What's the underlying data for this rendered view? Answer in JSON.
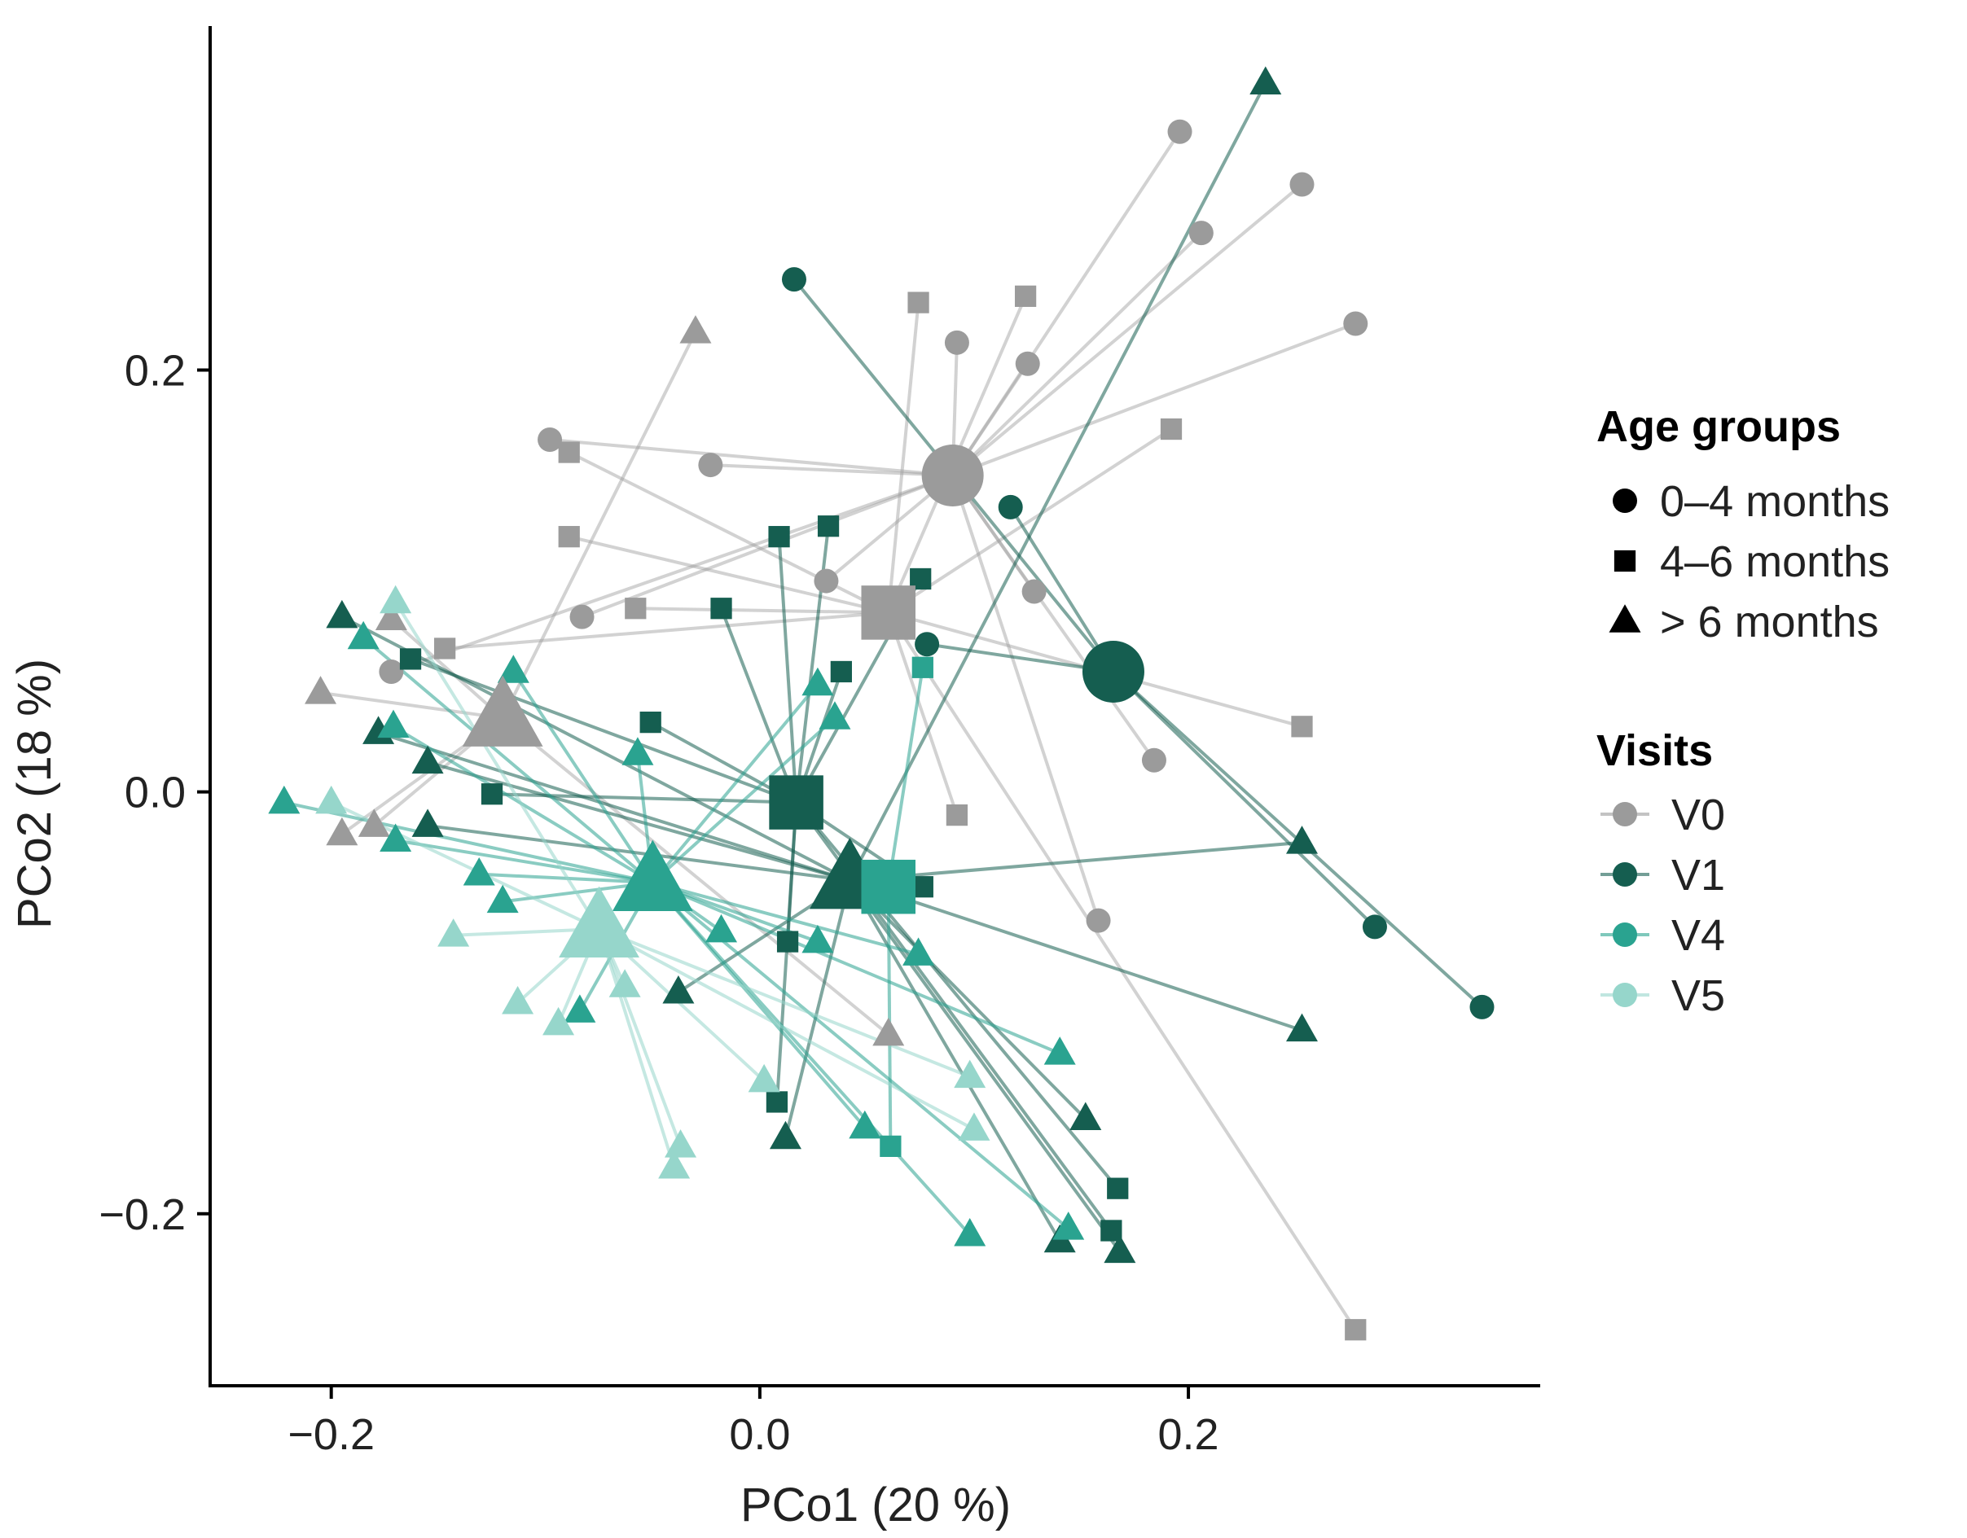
{
  "chart_data": {
    "type": "scatter",
    "subtype": "PCoA biplot with spider lines to centroids",
    "xlabel": "PCo1 (20 %)",
    "ylabel": "PCo2 (18 %)",
    "xlim": [
      -0.255,
      0.36
    ],
    "ylim": [
      -0.28,
      0.36
    ],
    "xticks": [
      -0.2,
      0.0,
      0.2
    ],
    "yticks": [
      -0.2,
      0.0,
      0.2
    ],
    "xtick_labels": [
      "−0.2",
      "0.0",
      "0.2"
    ],
    "ytick_labels": [
      "−0.2",
      "0.0",
      "0.2"
    ],
    "grid": false,
    "legend_position": "right",
    "legend": {
      "shape_title": "Age groups",
      "shapes": [
        {
          "shape": "circle",
          "label": "0–4 months"
        },
        {
          "shape": "square",
          "label": "4–6 months"
        },
        {
          "shape": "triangle",
          "label": "> 6 months"
        }
      ],
      "color_title": "Visits",
      "colors": [
        {
          "visit": "V0",
          "label": "V0"
        },
        {
          "visit": "V1",
          "label": "V1"
        },
        {
          "visit": "V4",
          "label": "V4"
        },
        {
          "visit": "V5",
          "label": "V5"
        }
      ]
    },
    "colors": {
      "V0": "#9b9b9b",
      "V1": "#155e50",
      "V4": "#2aa390",
      "V5": "#96d6cb"
    },
    "centroids": [
      {
        "visit": "V0",
        "shape": "circle",
        "x": 0.09,
        "y": 0.15
      },
      {
        "visit": "V0",
        "shape": "square",
        "x": 0.06,
        "y": 0.085
      },
      {
        "visit": "V0",
        "shape": "triangle",
        "x": -0.12,
        "y": 0.035
      },
      {
        "visit": "V1",
        "shape": "circle",
        "x": 0.165,
        "y": 0.057
      },
      {
        "visit": "V1",
        "shape": "square",
        "x": 0.017,
        "y": -0.005
      },
      {
        "visit": "V1",
        "shape": "triangle",
        "x": 0.042,
        "y": -0.042
      },
      {
        "visit": "V4",
        "shape": "square",
        "x": 0.06,
        "y": -0.045
      },
      {
        "visit": "V4",
        "shape": "triangle",
        "x": -0.05,
        "y": -0.043
      },
      {
        "visit": "V5",
        "shape": "triangle",
        "x": -0.075,
        "y": -0.065
      }
    ],
    "points": [
      {
        "visit": "V0",
        "shape": "circle",
        "x": 0.196,
        "y": 0.313
      },
      {
        "visit": "V0",
        "shape": "circle",
        "x": 0.253,
        "y": 0.288
      },
      {
        "visit": "V0",
        "shape": "circle",
        "x": 0.206,
        "y": 0.265
      },
      {
        "visit": "V0",
        "shape": "circle",
        "x": 0.278,
        "y": 0.222
      },
      {
        "visit": "V0",
        "shape": "circle",
        "x": 0.092,
        "y": 0.213
      },
      {
        "visit": "V0",
        "shape": "circle",
        "x": 0.125,
        "y": 0.203
      },
      {
        "visit": "V0",
        "shape": "circle",
        "x": -0.098,
        "y": 0.167
      },
      {
        "visit": "V0",
        "shape": "circle",
        "x": -0.023,
        "y": 0.155
      },
      {
        "visit": "V0",
        "shape": "circle",
        "x": 0.031,
        "y": 0.1
      },
      {
        "visit": "V0",
        "shape": "circle",
        "x": 0.128,
        "y": 0.095
      },
      {
        "visit": "V0",
        "shape": "circle",
        "x": -0.083,
        "y": 0.083
      },
      {
        "visit": "V0",
        "shape": "circle",
        "x": 0.184,
        "y": 0.015
      },
      {
        "visit": "V0",
        "shape": "circle",
        "x": 0.158,
        "y": -0.061
      },
      {
        "visit": "V0",
        "shape": "circle",
        "x": -0.172,
        "y": 0.057
      },
      {
        "visit": "V0",
        "shape": "square",
        "x": 0.074,
        "y": 0.232
      },
      {
        "visit": "V0",
        "shape": "square",
        "x": 0.124,
        "y": 0.235
      },
      {
        "visit": "V0",
        "shape": "square",
        "x": 0.192,
        "y": 0.172
      },
      {
        "visit": "V0",
        "shape": "square",
        "x": -0.089,
        "y": 0.161
      },
      {
        "visit": "V0",
        "shape": "square",
        "x": -0.089,
        "y": 0.121
      },
      {
        "visit": "V0",
        "shape": "square",
        "x": -0.058,
        "y": 0.087
      },
      {
        "visit": "V0",
        "shape": "square",
        "x": -0.147,
        "y": 0.068
      },
      {
        "visit": "V0",
        "shape": "square",
        "x": 0.253,
        "y": 0.031
      },
      {
        "visit": "V0",
        "shape": "square",
        "x": 0.092,
        "y": -0.011
      },
      {
        "visit": "V0",
        "shape": "square",
        "x": 0.278,
        "y": -0.255
      },
      {
        "visit": "V0",
        "shape": "triangle",
        "x": -0.03,
        "y": 0.218
      },
      {
        "visit": "V0",
        "shape": "triangle",
        "x": -0.172,
        "y": 0.082
      },
      {
        "visit": "V0",
        "shape": "triangle",
        "x": -0.205,
        "y": 0.047
      },
      {
        "visit": "V0",
        "shape": "triangle",
        "x": -0.195,
        "y": -0.02
      },
      {
        "visit": "V0",
        "shape": "triangle",
        "x": -0.18,
        "y": -0.016
      },
      {
        "visit": "V0",
        "shape": "triangle",
        "x": 0.06,
        "y": -0.115
      },
      {
        "visit": "V1",
        "shape": "circle",
        "x": 0.016,
        "y": 0.243
      },
      {
        "visit": "V1",
        "shape": "circle",
        "x": 0.117,
        "y": 0.135
      },
      {
        "visit": "V1",
        "shape": "circle",
        "x": 0.078,
        "y": 0.07
      },
      {
        "visit": "V1",
        "shape": "circle",
        "x": 0.287,
        "y": -0.064
      },
      {
        "visit": "V1",
        "shape": "circle",
        "x": 0.337,
        "y": -0.102
      },
      {
        "visit": "V1",
        "shape": "square",
        "x": 0.032,
        "y": 0.126
      },
      {
        "visit": "V1",
        "shape": "square",
        "x": 0.009,
        "y": 0.121
      },
      {
        "visit": "V1",
        "shape": "square",
        "x": 0.075,
        "y": 0.101
      },
      {
        "visit": "V1",
        "shape": "square",
        "x": -0.018,
        "y": 0.087
      },
      {
        "visit": "V1",
        "shape": "square",
        "x": -0.163,
        "y": 0.063
      },
      {
        "visit": "V1",
        "shape": "square",
        "x": 0.038,
        "y": 0.057
      },
      {
        "visit": "V1",
        "shape": "square",
        "x": -0.051,
        "y": 0.033
      },
      {
        "visit": "V1",
        "shape": "square",
        "x": -0.125,
        "y": -0.001
      },
      {
        "visit": "V1",
        "shape": "square",
        "x": 0.076,
        "y": -0.045
      },
      {
        "visit": "V1",
        "shape": "square",
        "x": 0.013,
        "y": -0.071
      },
      {
        "visit": "V1",
        "shape": "square",
        "x": 0.008,
        "y": -0.147
      },
      {
        "visit": "V1",
        "shape": "square",
        "x": 0.167,
        "y": -0.188
      },
      {
        "visit": "V1",
        "shape": "square",
        "x": 0.164,
        "y": -0.208
      },
      {
        "visit": "V1",
        "shape": "triangle",
        "x": 0.236,
        "y": 0.336
      },
      {
        "visit": "V1",
        "shape": "triangle",
        "x": -0.195,
        "y": 0.083
      },
      {
        "visit": "V1",
        "shape": "triangle",
        "x": -0.178,
        "y": 0.028
      },
      {
        "visit": "V1",
        "shape": "triangle",
        "x": -0.155,
        "y": 0.014
      },
      {
        "visit": "V1",
        "shape": "triangle",
        "x": -0.155,
        "y": -0.016
      },
      {
        "visit": "V1",
        "shape": "triangle",
        "x": 0.253,
        "y": -0.024
      },
      {
        "visit": "V1",
        "shape": "triangle",
        "x": -0.038,
        "y": -0.095
      },
      {
        "visit": "V1",
        "shape": "triangle",
        "x": 0.253,
        "y": -0.113
      },
      {
        "visit": "V1",
        "shape": "triangle",
        "x": 0.152,
        "y": -0.155
      },
      {
        "visit": "V1",
        "shape": "triangle",
        "x": 0.012,
        "y": -0.164
      },
      {
        "visit": "V1",
        "shape": "triangle",
        "x": 0.14,
        "y": -0.213
      },
      {
        "visit": "V1",
        "shape": "triangle",
        "x": 0.168,
        "y": -0.218
      },
      {
        "visit": "V4",
        "shape": "square",
        "x": 0.076,
        "y": 0.059
      },
      {
        "visit": "V4",
        "shape": "square",
        "x": 0.061,
        "y": -0.168
      },
      {
        "visit": "V4",
        "shape": "triangle",
        "x": -0.185,
        "y": 0.073
      },
      {
        "visit": "V4",
        "shape": "triangle",
        "x": -0.115,
        "y": 0.057
      },
      {
        "visit": "V4",
        "shape": "triangle",
        "x": 0.027,
        "y": 0.051
      },
      {
        "visit": "V4",
        "shape": "triangle",
        "x": 0.035,
        "y": 0.035
      },
      {
        "visit": "V4",
        "shape": "triangle",
        "x": -0.171,
        "y": 0.031
      },
      {
        "visit": "V4",
        "shape": "triangle",
        "x": -0.057,
        "y": 0.018
      },
      {
        "visit": "V4",
        "shape": "triangle",
        "x": -0.222,
        "y": -0.005
      },
      {
        "visit": "V4",
        "shape": "triangle",
        "x": -0.17,
        "y": -0.023
      },
      {
        "visit": "V4",
        "shape": "triangle",
        "x": -0.131,
        "y": -0.039
      },
      {
        "visit": "V4",
        "shape": "triangle",
        "x": -0.12,
        "y": -0.052
      },
      {
        "visit": "V4",
        "shape": "triangle",
        "x": -0.018,
        "y": -0.066
      },
      {
        "visit": "V4",
        "shape": "triangle",
        "x": 0.027,
        "y": -0.071
      },
      {
        "visit": "V4",
        "shape": "triangle",
        "x": 0.074,
        "y": -0.077
      },
      {
        "visit": "V4",
        "shape": "triangle",
        "x": -0.084,
        "y": -0.104
      },
      {
        "visit": "V4",
        "shape": "triangle",
        "x": 0.14,
        "y": -0.124
      },
      {
        "visit": "V4",
        "shape": "triangle",
        "x": 0.049,
        "y": -0.159
      },
      {
        "visit": "V4",
        "shape": "triangle",
        "x": 0.098,
        "y": -0.21
      },
      {
        "visit": "V4",
        "shape": "triangle",
        "x": 0.144,
        "y": -0.207
      },
      {
        "visit": "V5",
        "shape": "triangle",
        "x": -0.17,
        "y": 0.09
      },
      {
        "visit": "V5",
        "shape": "triangle",
        "x": -0.2,
        "y": -0.005
      },
      {
        "visit": "V5",
        "shape": "triangle",
        "x": -0.143,
        "y": -0.068
      },
      {
        "visit": "V5",
        "shape": "triangle",
        "x": -0.113,
        "y": -0.1
      },
      {
        "visit": "V5",
        "shape": "triangle",
        "x": -0.063,
        "y": -0.092
      },
      {
        "visit": "V5",
        "shape": "triangle",
        "x": -0.094,
        "y": -0.11
      },
      {
        "visit": "V5",
        "shape": "triangle",
        "x": 0.098,
        "y": -0.135
      },
      {
        "visit": "V5",
        "shape": "triangle",
        "x": 0.002,
        "y": -0.137
      },
      {
        "visit": "V5",
        "shape": "triangle",
        "x": 0.1,
        "y": -0.16
      },
      {
        "visit": "V5",
        "shape": "triangle",
        "x": -0.037,
        "y": -0.168
      },
      {
        "visit": "V5",
        "shape": "triangle",
        "x": -0.04,
        "y": -0.178
      }
    ]
  }
}
